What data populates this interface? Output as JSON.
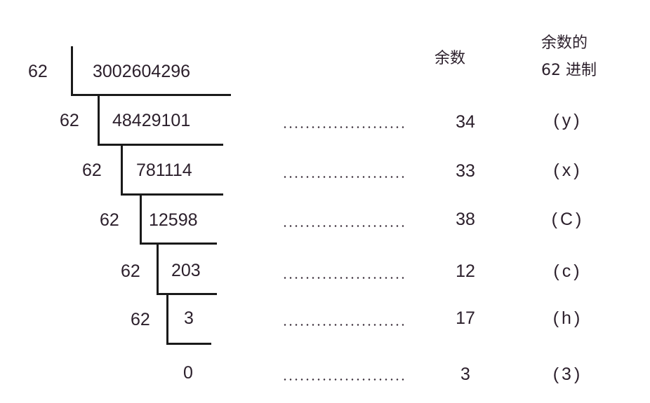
{
  "header": {
    "remainder_label": "余数",
    "base62_label_line1": "余数的",
    "base62_label_line2": "62 进制"
  },
  "division": {
    "divisor": "62",
    "dividend": "3002604296",
    "steps": [
      {
        "divisor": "62",
        "quotient": "48429101",
        "remainder": "34",
        "base62": "(y)"
      },
      {
        "divisor": "62",
        "quotient": "781114",
        "remainder": "33",
        "base62": "(x)"
      },
      {
        "divisor": "62",
        "quotient": "12598",
        "remainder": "38",
        "base62": "(C)"
      },
      {
        "divisor": "62",
        "quotient": "203",
        "remainder": "12",
        "base62": "(c)"
      },
      {
        "divisor": "62",
        "quotient": "3",
        "remainder": "17",
        "base62": "(h)"
      }
    ],
    "final": {
      "quotient": "0",
      "remainder": "3",
      "base62": "(3)"
    }
  }
}
